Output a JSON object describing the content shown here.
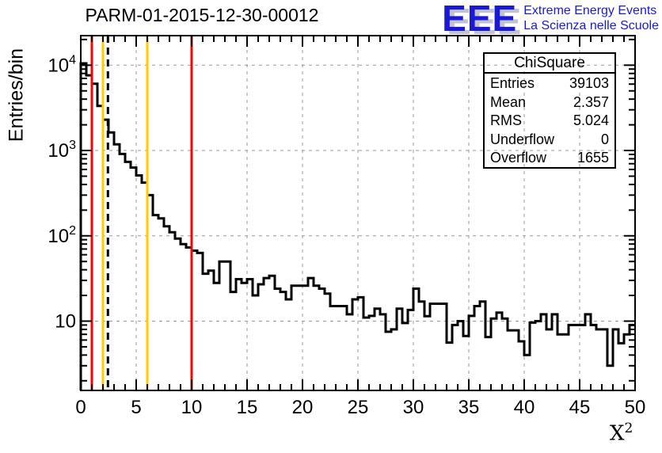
{
  "title": "PARM-01-2015-12-30-00012",
  "logo": {
    "acronym": "EEE",
    "line1": "Extreme Energy Events",
    "line2": "La Scienza nelle Scuole",
    "color": "#1a1ad6"
  },
  "y_axis_title": "Entries/bin",
  "x_axis_title": {
    "base": "X",
    "exponent": "2"
  },
  "stats": {
    "title": "ChiSquare",
    "rows": [
      {
        "label": "Entries",
        "value": "39103"
      },
      {
        "label": "Mean",
        "value": "2.357"
      },
      {
        "label": "RMS",
        "value": "5.024"
      },
      {
        "label": "Underflow",
        "value": "0"
      },
      {
        "label": "Overflow",
        "value": "1655"
      }
    ]
  },
  "chart_data": {
    "type": "histogram",
    "title": "PARM-01-2015-12-30-00012",
    "xlabel": "X^2",
    "ylabel": "Entries/bin",
    "x_start": 0,
    "bin_width": 0.5,
    "xlim": [
      0,
      50
    ],
    "y_scale": "log",
    "ylim": [
      1.54,
      22200
    ],
    "grid": true,
    "x_major_ticks": [
      0,
      5,
      10,
      15,
      20,
      25,
      30,
      35,
      40,
      45,
      50
    ],
    "x_minor_step": 1,
    "y_decades": [
      1,
      2,
      3,
      4
    ],
    "line_color": "#000000",
    "grid_color": "#9a9a9a",
    "values": [
      10500,
      7600,
      6060,
      3330,
      2300,
      1630,
      1180,
      910,
      735,
      630,
      510,
      420,
      300,
      175,
      160,
      129,
      110,
      93,
      80,
      73,
      67,
      63,
      36,
      39,
      28,
      50,
      50,
      22,
      31,
      28,
      31,
      20,
      27,
      32,
      34,
      24,
      22,
      18,
      26,
      26,
      26,
      32,
      26,
      24,
      21,
      15,
      15,
      15,
      12,
      18,
      19,
      11,
      11.5,
      14,
      12,
      7.5,
      8,
      14,
      9.5,
      13.5,
      24,
      17,
      11.4,
      16,
      16,
      16,
      5.6,
      9,
      10,
      6.7,
      11.5,
      15,
      17,
      6.5,
      10.7,
      12.6,
      10.7,
      7.8,
      7.8,
      5.8,
      4,
      9.6,
      10,
      12,
      8,
      12,
      7,
      7,
      9,
      9,
      9,
      12,
      9,
      8,
      8,
      3,
      8,
      5.5,
      7,
      9
    ],
    "overlay_lines": [
      {
        "x": 1,
        "color": "#ff0000",
        "dashed": false,
        "name": "red-cut-line-low"
      },
      {
        "x": 2,
        "color": "#ffcc00",
        "dashed": false,
        "name": "yellow-cut-line-low"
      },
      {
        "x": 2.45,
        "color": "#000000",
        "dashed": true,
        "name": "mean-dashed-line"
      },
      {
        "x": 6,
        "color": "#ffcc00",
        "dashed": false,
        "name": "yellow-cut-line-high"
      },
      {
        "x": 10,
        "color": "#ff0000",
        "dashed": false,
        "name": "red-cut-line-high"
      }
    ]
  }
}
